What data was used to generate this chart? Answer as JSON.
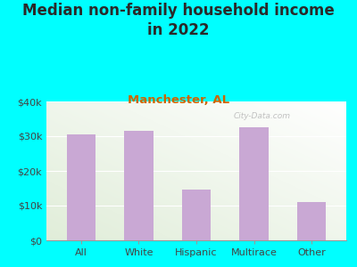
{
  "title": "Median non-family household income\nin 2022",
  "subtitle": "Manchester, AL",
  "categories": [
    "All",
    "White",
    "Hispanic",
    "Multirace",
    "Other"
  ],
  "values": [
    30500,
    31500,
    14500,
    32500,
    11000
  ],
  "bar_color": "#c9a8d4",
  "title_fontsize": 12,
  "subtitle_fontsize": 9.5,
  "subtitle_color": "#cc6600",
  "title_color": "#2a2a2a",
  "background_color": "#00ffff",
  "ylim": [
    0,
    40000
  ],
  "yticks": [
    0,
    10000,
    20000,
    30000,
    40000
  ],
  "ytick_labels": [
    "$0",
    "$10k",
    "$20k",
    "$30k",
    "$40k"
  ],
  "watermark": "City-Data.com"
}
